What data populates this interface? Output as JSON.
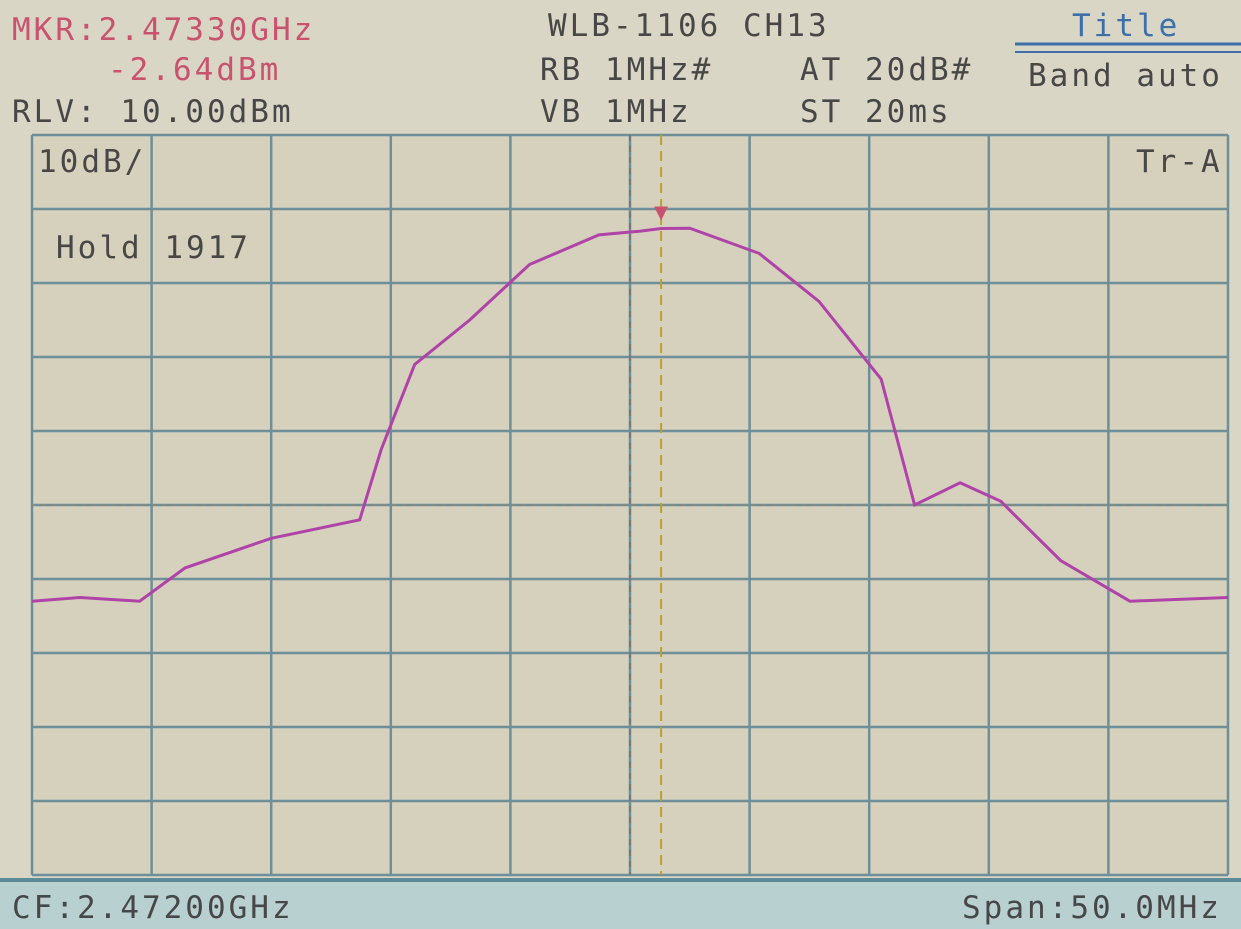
{
  "screen": {
    "marker_freq": "MKR:2.47330GHz",
    "marker_level": "-2.64dBm",
    "ref_level": "RLV: 10.00dBm",
    "device": "WLB-1106 CH13",
    "rbw": "RB 1MHz#",
    "atten": "AT 20dB#",
    "vbw": "VB 1MHz",
    "sweep": "ST 20ms",
    "menu_title": "Title",
    "menu_item": "Band auto",
    "scale": "10dB/",
    "trace_name": "Tr-A",
    "hold": "Hold 1917",
    "center": "CF:2.47200GHz",
    "span": "Span:50.0MHz"
  },
  "chart_data": {
    "type": "line",
    "color": "#b043a8",
    "grid": true,
    "x": [
      2.447,
      2.449,
      2.4515,
      2.4534,
      2.457,
      2.4607,
      2.4616,
      2.463,
      2.4653,
      2.4678,
      2.4707,
      2.4724,
      2.4733,
      2.4745,
      2.4774,
      2.4799,
      2.4825,
      2.4839,
      2.4858,
      2.4875,
      2.49,
      2.4929,
      2.497
    ],
    "values": [
      -53,
      -52.5,
      -53,
      -48.5,
      -44.5,
      -42,
      -32.5,
      -21,
      -15,
      -7.5,
      -3.5,
      -3,
      -2.64,
      -2.6,
      -6,
      -12.5,
      -23,
      -40,
      -37,
      -39.5,
      -47.5,
      -53,
      -52.5
    ],
    "xlim": [
      2.447,
      2.497
    ],
    "xticks": [
      2.447,
      2.452,
      2.457,
      2.462,
      2.467,
      2.472,
      2.477,
      2.482,
      2.487,
      2.492,
      2.497
    ],
    "ylim": [
      -90,
      10
    ],
    "yticks": [
      -90,
      -80,
      -70,
      -60,
      -50,
      -40,
      -30,
      -20,
      -10,
      0,
      10
    ],
    "display_line": -40,
    "center_freq": 2.472,
    "marker": {
      "x": 2.4733,
      "y": -2.64
    }
  }
}
